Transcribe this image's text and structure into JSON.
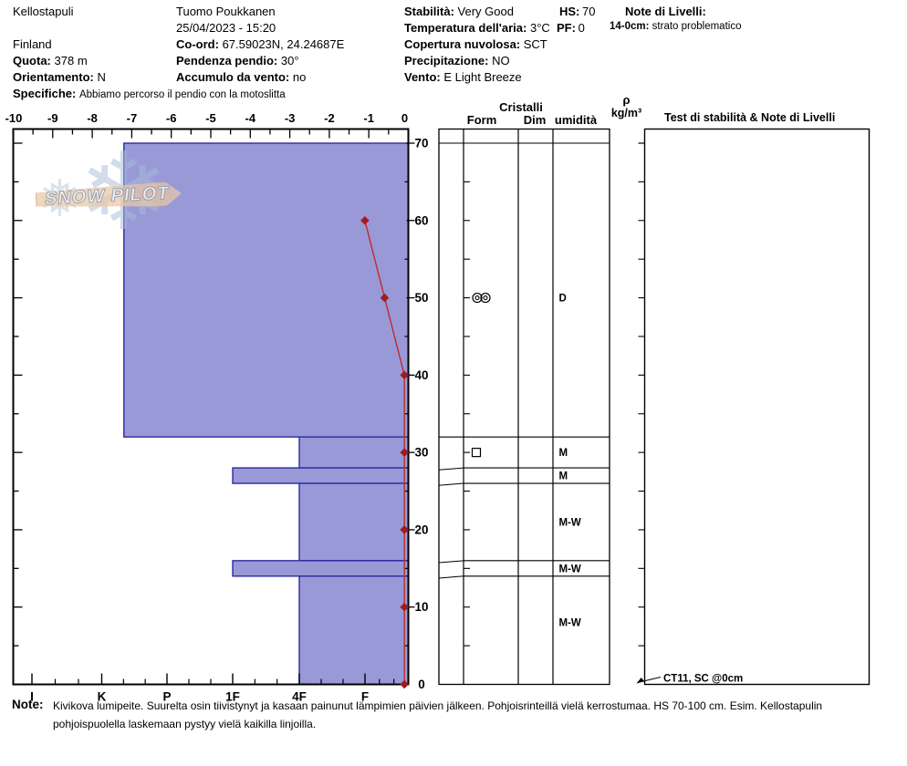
{
  "header": {
    "site": "Kellostapuli",
    "country": "Finland",
    "quota_label": "Quota:",
    "quota_value": "378 m",
    "orientamento_label": "Orientamento:",
    "orientamento_value": "N",
    "specifiche_label": "Specifiche:",
    "specifiche_value": "Abbiamo percorso il pendio con la motoslitta",
    "observer": "Tuomo Poukkanen",
    "datetime": "25/04/2023 - 15:20",
    "coord_label": "Co-ord:",
    "coord_value": "67.59023N, 24.24687E",
    "pendenza_label": "Pendenza pendio:",
    "pendenza_value": "30°",
    "accumulo_label": "Accumulo da vento:",
    "accumulo_value": "no",
    "stabilita_label": "Stabilità:",
    "stabilita_value": "Very Good",
    "temperatura_label": "Temperatura dell'aria:",
    "temperatura_value": "3°C",
    "copertura_label": "Copertura nuvolosa:",
    "copertura_value": "SCT",
    "precipitazione_label": "Precipitazione:",
    "precipitazione_value": "NO",
    "vento_label": "Vento:",
    "vento_value": "E Light Breeze",
    "hs_label": "HS:",
    "hs_value": "70",
    "pf_label": "PF:",
    "pf_value": "0",
    "note_livelli_label": "Note di Livelli:",
    "note_livelli_item_label": "14-0cm:",
    "note_livelli_item_value": "strato problematico"
  },
  "panel": {
    "cristalli_header": "Cristalli",
    "col_form": "Form",
    "col_dim": "Dim",
    "col_umidita": "umidità",
    "rho_symbol": "ρ",
    "rho_unit": "kg/m³",
    "test_header": "Test di stabilità & Note di Livelli"
  },
  "logo": {
    "text": "SNOW PILOT"
  },
  "note": {
    "label": "Note:",
    "line1": "Kivikova lumipeite. Suurelta osin tiivistynyt ja kasaan painunut lämpimien päivien jälkeen. Pohjoisrinteillä vielä kerrostumaa. HS 70-100 cm. Esim. Kellostapulin",
    "line2": "pohjoispuolella laskemaan pystyy vielä kaikilla linjoilla."
  },
  "chart_data": {
    "type": "snow-profile",
    "hs_cm": 70,
    "depth_axis": {
      "unit": "cm",
      "min": 0,
      "max": 70,
      "tick_labels": [
        "0",
        "10",
        "20",
        "30",
        "40",
        "50",
        "60",
        "70"
      ]
    },
    "temp_axis": {
      "unit": "°C",
      "min": -10,
      "max": 0,
      "tick_labels": [
        "-10",
        "-9",
        "-8",
        "-7",
        "-6",
        "-5",
        "-4",
        "-3",
        "-2",
        "-1",
        "0"
      ]
    },
    "hardness_axis": {
      "categories": [
        "I",
        "K",
        "P",
        "1F",
        "4F",
        "F"
      ]
    },
    "layers": [
      {
        "top_cm": 70,
        "bottom_cm": 32,
        "hardness": "K-",
        "grain_form": "MF",
        "grain_symbol": "melt-circles",
        "grain_cm": 50,
        "wetness": "D",
        "wetness_cm": 50
      },
      {
        "top_cm": 32,
        "bottom_cm": 28,
        "hardness": "4F",
        "grain_form": "FC",
        "grain_symbol": "square",
        "grain_cm": 30,
        "wetness": "M",
        "wetness_cm": 30
      },
      {
        "top_cm": 28,
        "bottom_cm": 26,
        "hardness": "1F",
        "wetness": "M",
        "wetness_cm": 27
      },
      {
        "top_cm": 26,
        "bottom_cm": 16,
        "hardness": "4F",
        "wetness": "M-W",
        "wetness_cm": 21
      },
      {
        "top_cm": 16,
        "bottom_cm": 14,
        "hardness": "1F",
        "wetness": "M-W",
        "wetness_cm": 15
      },
      {
        "top_cm": 14,
        "bottom_cm": 0,
        "hardness": "4F",
        "wetness": "M-W",
        "wetness_cm": 8
      }
    ],
    "temperature_profile": [
      {
        "depth_cm": 60,
        "temp_c": -1.1
      },
      {
        "depth_cm": 50,
        "temp_c": -0.6
      },
      {
        "depth_cm": 40,
        "temp_c": -0.1
      },
      {
        "depth_cm": 30,
        "temp_c": -0.1
      },
      {
        "depth_cm": 20,
        "temp_c": -0.1
      },
      {
        "depth_cm": 10,
        "temp_c": -0.1
      },
      {
        "depth_cm": 0,
        "temp_c": -0.1
      }
    ],
    "stability_tests": [
      {
        "text": "CT11, SC @0cm",
        "depth_cm": 0
      }
    ],
    "colors": {
      "layer_fill": "#9a99d8",
      "layer_border": "#2a2aa0",
      "temp_line": "#bf2b2b",
      "temp_marker": "#a31c1c"
    }
  }
}
